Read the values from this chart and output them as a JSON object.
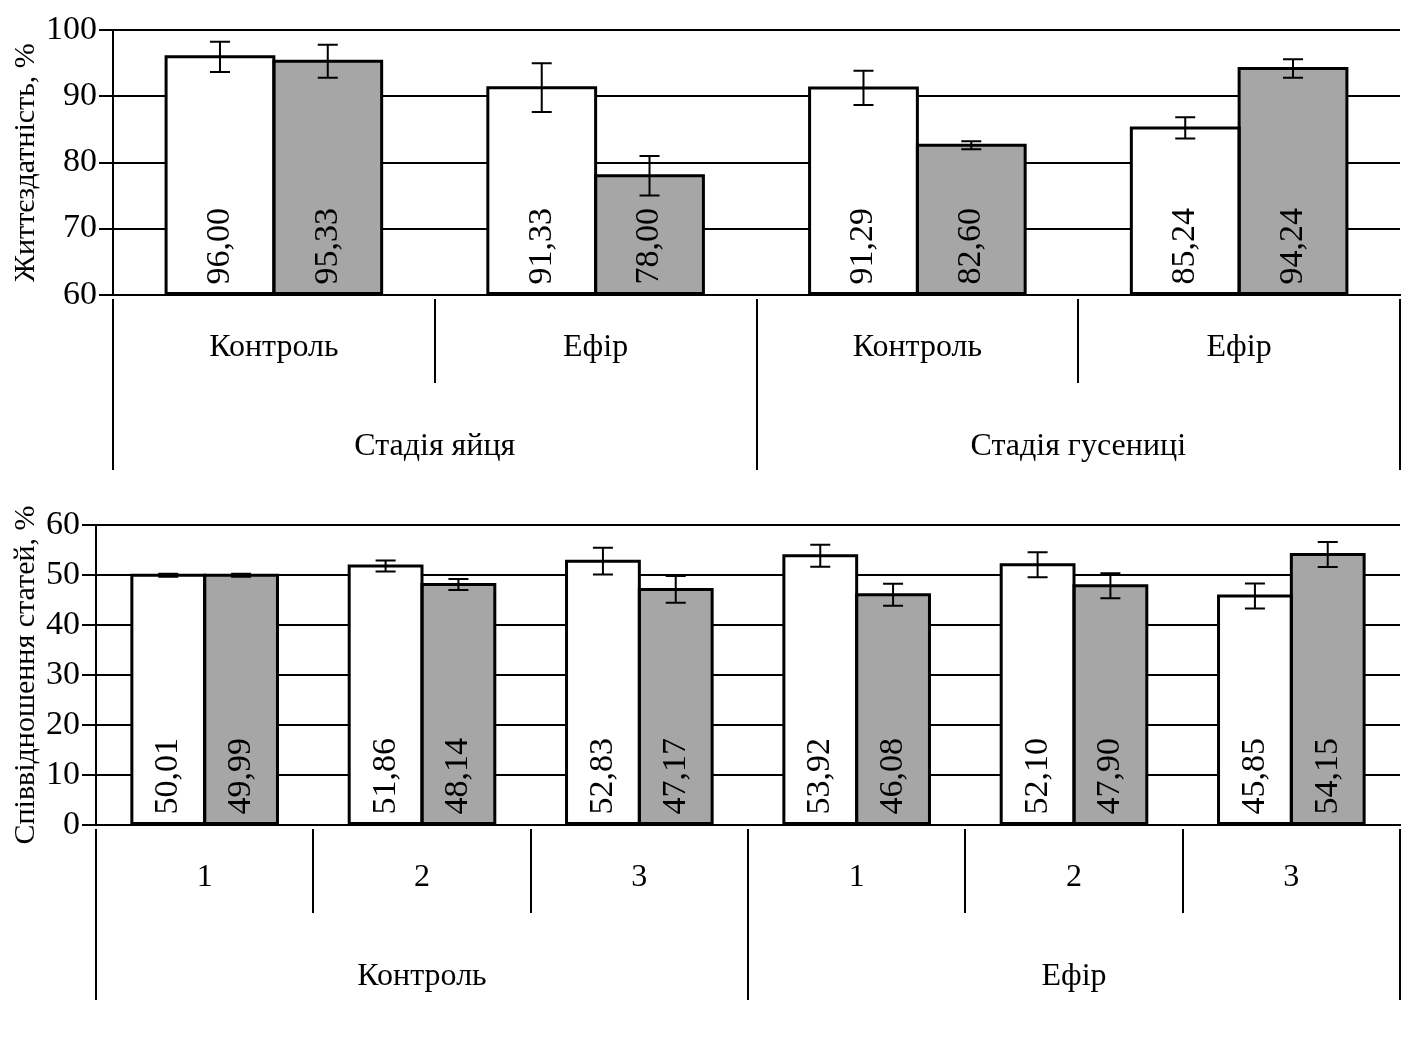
{
  "chart_data": [
    {
      "type": "bar",
      "ylabel": "Життєздатність, %",
      "categories": [
        "Контроль",
        "Ефір",
        "Контроль",
        "Ефір"
      ],
      "annotations": [
        "Стадія яйця",
        "Стадія гусениці"
      ],
      "ylim": [
        60,
        100
      ],
      "yticks": [
        60,
        70,
        80,
        90,
        100
      ],
      "grid": "y",
      "series": [
        {
          "color": "#ffffff",
          "values": [
            96.0,
            91.33,
            91.29,
            85.24
          ],
          "errors": [
            2.3,
            3.7,
            2.6,
            1.6
          ],
          "value_labels": [
            "96,00",
            "91,33",
            "91,29",
            "85,24"
          ]
        },
        {
          "color": "#a6a6a6",
          "values": [
            95.33,
            78.0,
            82.6,
            94.24
          ],
          "errors": [
            2.5,
            3.0,
            0.6,
            1.4
          ],
          "value_labels": [
            "95,33",
            "78,00",
            "82,60",
            "94,24"
          ]
        }
      ]
    },
    {
      "type": "bar",
      "ylabel": "Співвідношення статей, %",
      "categories": [
        "1",
        "2",
        "3",
        "1",
        "2",
        "3"
      ],
      "annotations": [
        "Контроль",
        "Ефір"
      ],
      "ylim": [
        0,
        60
      ],
      "yticks": [
        0,
        10,
        20,
        30,
        40,
        50,
        60
      ],
      "grid": "y",
      "series": [
        {
          "color": "#ffffff",
          "values": [
            50.01,
            51.86,
            52.83,
            53.92,
            52.1,
            45.85
          ],
          "errors": [
            0.3,
            1.1,
            2.7,
            2.2,
            2.5,
            2.5
          ],
          "value_labels": [
            "50,01",
            "51,86",
            "52,83",
            "53,92",
            "52,10",
            "45,85"
          ]
        },
        {
          "color": "#a6a6a6",
          "values": [
            49.99,
            48.14,
            47.17,
            46.08,
            47.9,
            54.15
          ],
          "errors": [
            0.3,
            1.1,
            2.7,
            2.2,
            2.5,
            2.5
          ],
          "value_labels": [
            "49,99",
            "48,14",
            "47,17",
            "46,08",
            "47,90",
            "54,15"
          ]
        }
      ]
    }
  ]
}
